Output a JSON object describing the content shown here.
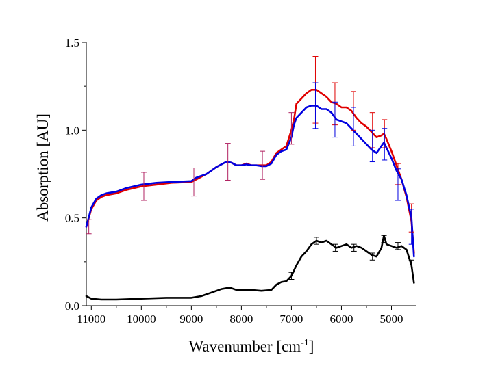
{
  "chart_data": {
    "type": "line",
    "title": "",
    "xlabel": "Wavenumber [cm",
    "xlabel_sup": "-1",
    "xlabel_suffix": "]",
    "ylabel": "Absorption [AU]",
    "xlim": [
      11100,
      4500
    ],
    "ylim": [
      0.0,
      1.5
    ],
    "x_reversed": true,
    "grid": false,
    "legend": "none",
    "x_ticks": [
      11000,
      10000,
      9000,
      8000,
      7000,
      6000,
      5000
    ],
    "x_tick_labels": [
      "11000",
      "10000",
      "9000",
      "8000",
      "7000",
      "6000",
      "5000"
    ],
    "y_ticks": [
      0.0,
      0.5,
      1.0,
      1.5
    ],
    "y_tick_labels": [
      "0.0",
      "0.5",
      "1.0",
      "1.5"
    ],
    "series": [
      {
        "color": "#e00000",
        "x": [
          11100,
          11000,
          10900,
          10800,
          10700,
          10500,
          10300,
          10000,
          9700,
          9400,
          9000,
          8900,
          8700,
          8500,
          8300,
          8200,
          8100,
          8000,
          7900,
          7800,
          7700,
          7600,
          7500,
          7400,
          7300,
          7200,
          7100,
          7000,
          6950,
          6900,
          6800,
          6700,
          6600,
          6500,
          6400,
          6300,
          6200,
          6100,
          6000,
          5900,
          5800,
          5700,
          5600,
          5500,
          5400,
          5300,
          5200,
          5150,
          5100,
          5000,
          4900,
          4800,
          4700,
          4600,
          4550
        ],
        "y": [
          0.45,
          0.55,
          0.6,
          0.62,
          0.63,
          0.64,
          0.66,
          0.68,
          0.69,
          0.7,
          0.705,
          0.72,
          0.75,
          0.79,
          0.82,
          0.815,
          0.8,
          0.8,
          0.81,
          0.8,
          0.8,
          0.8,
          0.8,
          0.82,
          0.87,
          0.89,
          0.91,
          1.0,
          1.06,
          1.15,
          1.18,
          1.21,
          1.23,
          1.23,
          1.21,
          1.19,
          1.16,
          1.15,
          1.13,
          1.13,
          1.11,
          1.07,
          1.04,
          1.02,
          0.99,
          0.96,
          0.97,
          0.98,
          0.95,
          0.88,
          0.8,
          0.72,
          0.62,
          0.48,
          0.3
        ]
      },
      {
        "color": "#0000e0",
        "x": [
          11100,
          11000,
          10900,
          10800,
          10700,
          10500,
          10300,
          10000,
          9700,
          9400,
          9000,
          8900,
          8700,
          8500,
          8300,
          8200,
          8100,
          8000,
          7900,
          7800,
          7700,
          7600,
          7500,
          7400,
          7300,
          7200,
          7100,
          7000,
          6950,
          6900,
          6800,
          6700,
          6600,
          6500,
          6400,
          6300,
          6200,
          6100,
          6000,
          5900,
          5800,
          5700,
          5600,
          5500,
          5400,
          5300,
          5200,
          5150,
          5100,
          5000,
          4900,
          4800,
          4700,
          4600,
          4550
        ],
        "y": [
          0.45,
          0.56,
          0.61,
          0.63,
          0.64,
          0.65,
          0.67,
          0.69,
          0.7,
          0.705,
          0.71,
          0.73,
          0.75,
          0.79,
          0.82,
          0.815,
          0.8,
          0.8,
          0.805,
          0.8,
          0.8,
          0.795,
          0.795,
          0.81,
          0.86,
          0.88,
          0.89,
          0.96,
          1.03,
          1.07,
          1.1,
          1.13,
          1.14,
          1.14,
          1.12,
          1.12,
          1.1,
          1.06,
          1.05,
          1.04,
          1.01,
          0.98,
          0.95,
          0.92,
          0.89,
          0.87,
          0.91,
          0.93,
          0.9,
          0.84,
          0.77,
          0.72,
          0.63,
          0.5,
          0.28
        ]
      },
      {
        "color": "#000000",
        "x": [
          11100,
          11000,
          10800,
          10500,
          10000,
          9500,
          9000,
          8800,
          8600,
          8400,
          8300,
          8200,
          8100,
          8000,
          7900,
          7800,
          7600,
          7400,
          7300,
          7200,
          7100,
          7000,
          6900,
          6800,
          6700,
          6600,
          6500,
          6400,
          6300,
          6200,
          6100,
          6000,
          5900,
          5800,
          5700,
          5600,
          5500,
          5400,
          5300,
          5200,
          5150,
          5100,
          5000,
          4900,
          4800,
          4700,
          4600,
          4550
        ],
        "y": [
          0.055,
          0.04,
          0.035,
          0.035,
          0.04,
          0.045,
          0.045,
          0.055,
          0.075,
          0.095,
          0.1,
          0.1,
          0.09,
          0.09,
          0.09,
          0.09,
          0.085,
          0.09,
          0.12,
          0.135,
          0.14,
          0.17,
          0.23,
          0.28,
          0.31,
          0.35,
          0.37,
          0.36,
          0.37,
          0.35,
          0.33,
          0.34,
          0.35,
          0.33,
          0.34,
          0.33,
          0.31,
          0.29,
          0.28,
          0.33,
          0.4,
          0.35,
          0.34,
          0.33,
          0.34,
          0.32,
          0.23,
          0.13
        ]
      }
    ],
    "error_bars": [
      {
        "x": 11050,
        "y": 0.45,
        "err": 0.04,
        "color": "#b02060"
      },
      {
        "x": 9950,
        "y": 0.68,
        "err": 0.08,
        "color": "#b02060"
      },
      {
        "x": 8950,
        "y": 0.705,
        "err": 0.08,
        "color": "#b02060"
      },
      {
        "x": 8270,
        "y": 0.82,
        "err": 0.105,
        "color": "#b02060"
      },
      {
        "x": 7580,
        "y": 0.8,
        "err": 0.08,
        "color": "#b02060"
      },
      {
        "x": 7000,
        "y": 1.01,
        "err": 0.09,
        "color": "#b02060"
      },
      {
        "x": 6520,
        "y": 1.23,
        "err": 0.19,
        "color": "#e00000"
      },
      {
        "x": 6520,
        "y": 1.14,
        "err": 0.13,
        "color": "#0000e0"
      },
      {
        "x": 6130,
        "y": 1.15,
        "err": 0.12,
        "color": "#e00000"
      },
      {
        "x": 6130,
        "y": 1.06,
        "err": 0.1,
        "color": "#0000e0"
      },
      {
        "x": 5760,
        "y": 1.11,
        "err": 0.11,
        "color": "#e00000"
      },
      {
        "x": 5760,
        "y": 1.02,
        "err": 0.11,
        "color": "#0000e0"
      },
      {
        "x": 5380,
        "y": 1.0,
        "err": 0.1,
        "color": "#e00000"
      },
      {
        "x": 5380,
        "y": 0.91,
        "err": 0.09,
        "color": "#0000e0"
      },
      {
        "x": 5140,
        "y": 0.98,
        "err": 0.08,
        "color": "#e00000"
      },
      {
        "x": 5140,
        "y": 0.92,
        "err": 0.09,
        "color": "#0000e0"
      },
      {
        "x": 4870,
        "y": 0.75,
        "err": 0.06,
        "color": "#e00000"
      },
      {
        "x": 4870,
        "y": 0.69,
        "err": 0.09,
        "color": "#0000e0"
      },
      {
        "x": 4600,
        "y": 0.5,
        "err": 0.08,
        "color": "#e00000"
      },
      {
        "x": 4600,
        "y": 0.45,
        "err": 0.1,
        "color": "#0000e0"
      },
      {
        "x": 6500,
        "y": 0.37,
        "err": 0.02,
        "color": "#000000"
      },
      {
        "x": 6120,
        "y": 0.33,
        "err": 0.02,
        "color": "#000000"
      },
      {
        "x": 5750,
        "y": 0.33,
        "err": 0.02,
        "color": "#000000"
      },
      {
        "x": 5380,
        "y": 0.28,
        "err": 0.02,
        "color": "#000000"
      },
      {
        "x": 5150,
        "y": 0.38,
        "err": 0.02,
        "color": "#000000"
      },
      {
        "x": 4870,
        "y": 0.34,
        "err": 0.02,
        "color": "#000000"
      },
      {
        "x": 4600,
        "y": 0.24,
        "err": 0.02,
        "color": "#000000"
      },
      {
        "x": 7000,
        "y": 0.17,
        "err": 0.02,
        "color": "#000000"
      }
    ]
  }
}
